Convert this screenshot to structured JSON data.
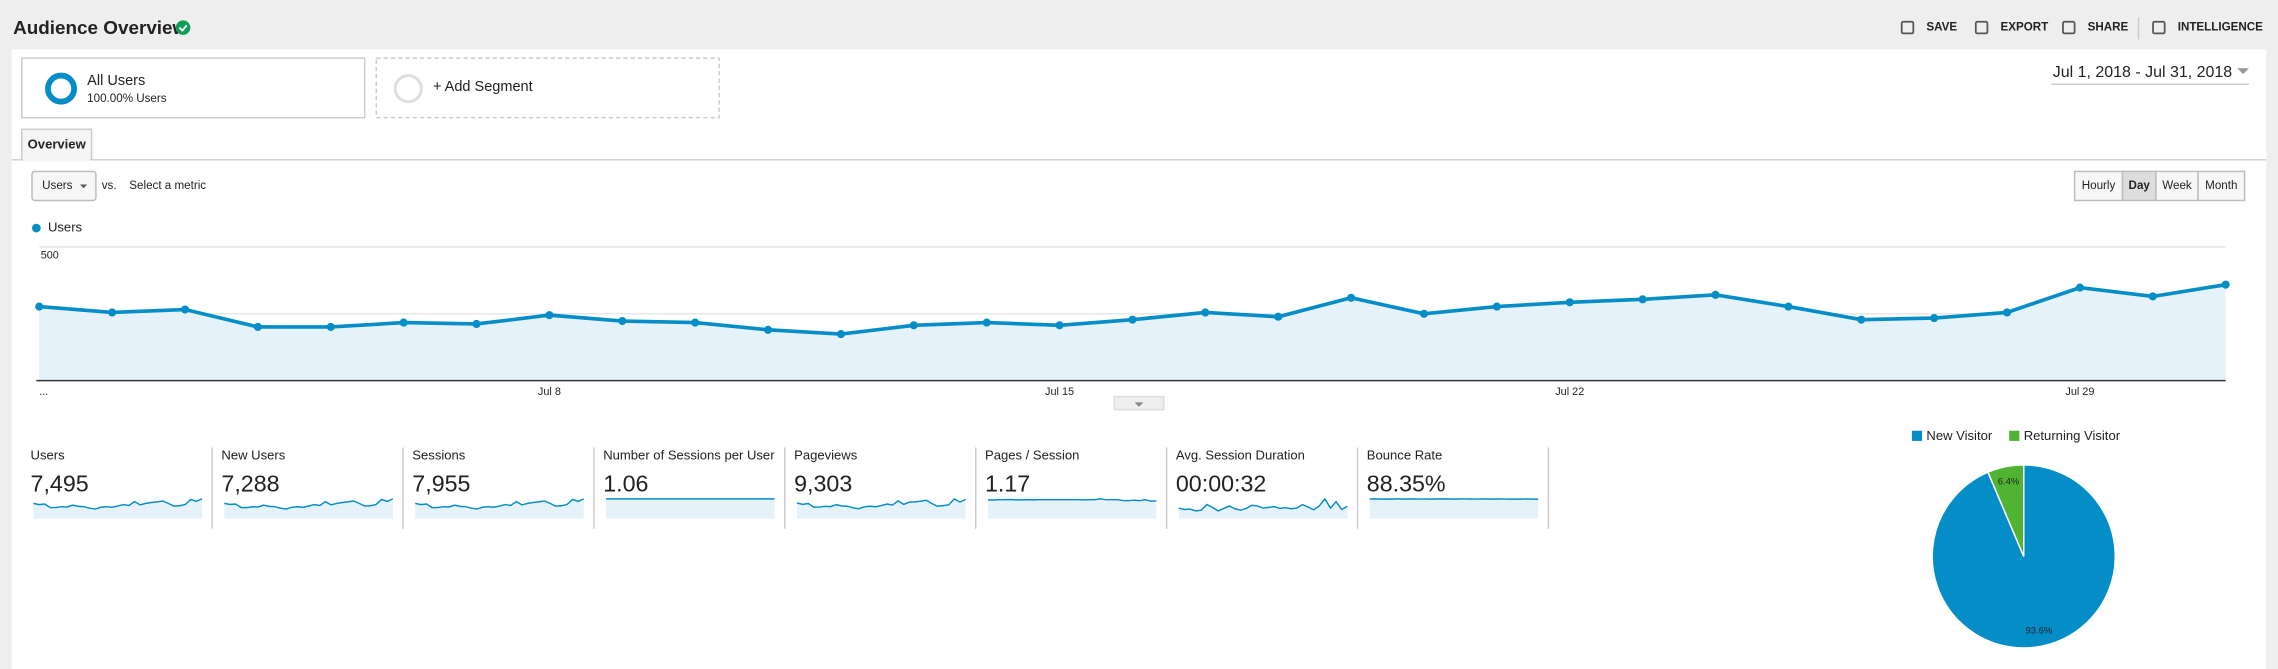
{
  "header": {
    "title": "Audience Overview",
    "actions": [
      "SAVE",
      "EXPORT",
      "SHARE",
      "INTELLIGENCE"
    ]
  },
  "segments": {
    "active": {
      "name": "All Users",
      "detail": "100.00% Users"
    },
    "add": "+ Add Segment"
  },
  "date_range": "Jul 1, 2018 - Jul 31, 2018",
  "tab": "Overview",
  "controls": {
    "metric": "Users",
    "vs": "vs.",
    "select": "Select a metric",
    "granularity": [
      "Hourly",
      "Day",
      "Week",
      "Month"
    ],
    "selected": "Day"
  },
  "chart_data": [
    {
      "type": "line",
      "categories": [
        "...",
        null,
        null,
        null,
        null,
        null,
        null,
        "Jul 8",
        null,
        null,
        null,
        null,
        null,
        null,
        "Jul 15",
        null,
        null,
        null,
        null,
        null,
        null,
        "Jul 22",
        null,
        null,
        null,
        null,
        null,
        null,
        "Jul 29",
        null,
        null
      ],
      "series": [
        {
          "name": "Users",
          "color": "#058dc7",
          "values": [
            277,
            255,
            266,
            201,
            201,
            217,
            212,
            245,
            223,
            217,
            190,
            174,
            207,
            217,
            207,
            228,
            255,
            239,
            310,
            250,
            277,
            293,
            304,
            321,
            277,
            228,
            234,
            255,
            348,
            315,
            359
          ]
        }
      ],
      "ylim": [
        0,
        500
      ],
      "yticks": [
        250,
        500
      ],
      "grid": true
    },
    {
      "type": "pie",
      "categories": [
        "New Visitor",
        "Returning Visitor"
      ],
      "values": [
        93.6,
        6.4
      ],
      "value_labels": [
        "93.6%",
        "6.4%"
      ],
      "colors": [
        "#058dc7",
        "#50b432"
      ]
    }
  ],
  "metrics": [
    {
      "name": "Users",
      "value": "7,495",
      "trend": [
        277,
        255,
        266,
        201,
        201,
        217,
        212,
        245,
        223,
        217,
        190,
        174,
        207,
        217,
        207,
        228,
        255,
        239,
        310,
        250,
        277,
        293,
        304,
        321,
        277,
        228,
        234,
        255,
        348,
        315,
        359
      ]
    },
    {
      "name": "New Users",
      "value": "7,288",
      "trend": [
        270,
        250,
        258,
        196,
        195,
        210,
        206,
        238,
        216,
        211,
        184,
        170,
        200,
        210,
        201,
        221,
        248,
        232,
        301,
        243,
        269,
        285,
        296,
        312,
        270,
        222,
        228,
        248,
        338,
        306,
        349
      ]
    },
    {
      "name": "Sessions",
      "value": "7,955",
      "trend": [
        294,
        271,
        282,
        213,
        214,
        230,
        225,
        260,
        237,
        230,
        202,
        185,
        220,
        230,
        220,
        242,
        271,
        254,
        329,
        265,
        294,
        311,
        323,
        341,
        294,
        242,
        248,
        271,
        369,
        334,
        381
      ]
    },
    {
      "name": "Number of Sessions per User",
      "value": "1.06",
      "trend": [
        1.06,
        1.06,
        1.06,
        1.06,
        1.06,
        1.06,
        1.06,
        1.06,
        1.06,
        1.06,
        1.06,
        1.06,
        1.06,
        1.06,
        1.06,
        1.06,
        1.06,
        1.06,
        1.06,
        1.06,
        1.06,
        1.06,
        1.06,
        1.06,
        1.06,
        1.06,
        1.06,
        1.06,
        1.06,
        1.06,
        1.06
      ]
    },
    {
      "name": "Pageviews",
      "value": "9,303",
      "trend": [
        340,
        310,
        330,
        250,
        252,
        268,
        262,
        305,
        275,
        270,
        236,
        216,
        258,
        270,
        258,
        284,
        318,
        296,
        386,
        310,
        360,
        365,
        380,
        400,
        330,
        270,
        283,
        300,
        430,
        360,
        420
      ]
    },
    {
      "name": "Pages / Session",
      "value": "1.17",
      "trend": [
        1.16,
        1.15,
        1.17,
        1.17,
        1.18,
        1.16,
        1.16,
        1.17,
        1.16,
        1.17,
        1.17,
        1.17,
        1.17,
        1.17,
        1.17,
        1.17,
        1.17,
        1.16,
        1.17,
        1.17,
        1.22,
        1.17,
        1.17,
        1.17,
        1.12,
        1.11,
        1.14,
        1.11,
        1.17,
        1.08,
        1.1
      ]
    },
    {
      "name": "Avg. Session Duration",
      "value": "00:00:32",
      "trend": [
        30,
        26,
        27,
        22,
        24,
        40,
        32,
        22,
        29,
        36,
        28,
        24,
        29,
        38,
        36,
        30,
        32,
        34,
        29,
        31,
        28,
        30,
        40,
        33,
        25,
        36,
        56,
        30,
        48,
        26,
        35
      ]
    },
    {
      "name": "Bounce Rate",
      "value": "88.35%",
      "trend": [
        88,
        89,
        88,
        88.5,
        88,
        89,
        88,
        88.3,
        88.6,
        88.2,
        88.5,
        88,
        88.4,
        88.9,
        88.3,
        88,
        88.5,
        88.7,
        88.4,
        88.2,
        88.6,
        88.3,
        88,
        88.4,
        88.2,
        88,
        88.2,
        87.8,
        88.4,
        88,
        87.5
      ]
    }
  ]
}
